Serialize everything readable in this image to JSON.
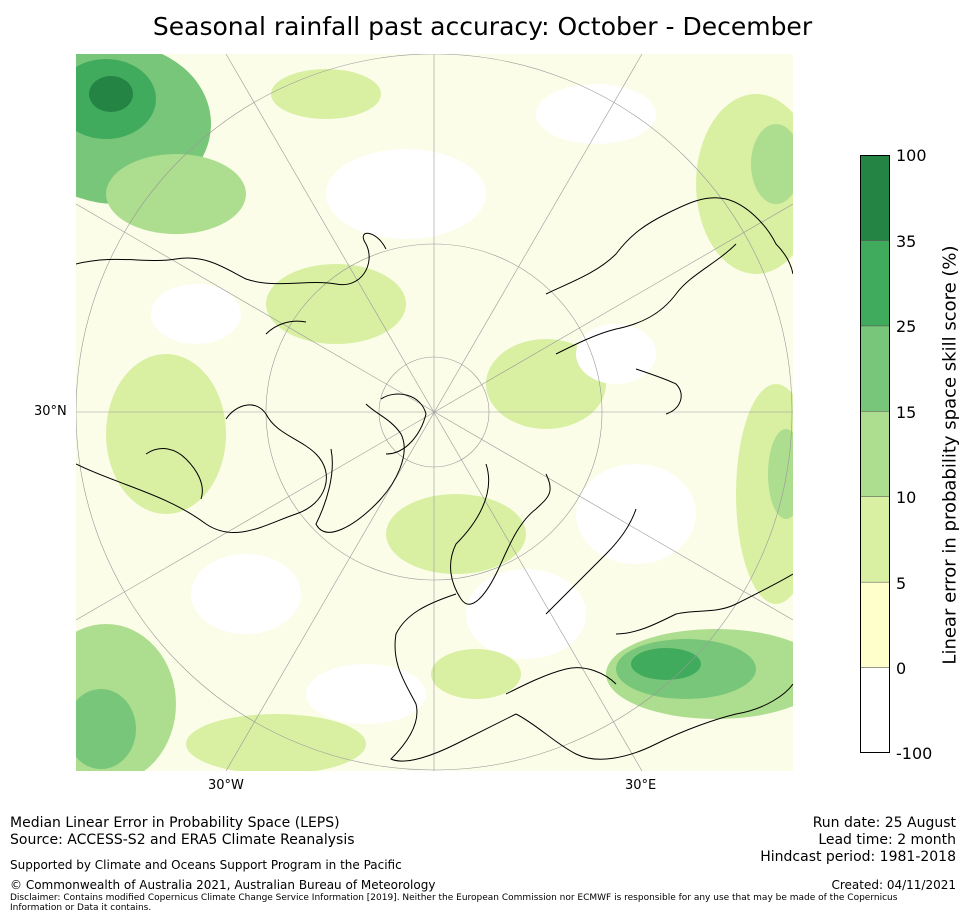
{
  "title": "Seasonal rainfall past accuracy: October - December",
  "map": {
    "projection": "north polar stereographic",
    "lat_label": "30°N",
    "lon_labels": [
      "30°W",
      "30°E"
    ]
  },
  "colorbar": {
    "label": "Linear error in probability space skill score (%)",
    "ticks": [
      "100",
      "35",
      "25",
      "15",
      "10",
      "5",
      "0",
      "-100"
    ],
    "bins": [
      {
        "from": -100,
        "to": 0,
        "color": "#ffffff"
      },
      {
        "from": 0,
        "to": 5,
        "color": "#ffffcc"
      },
      {
        "from": 5,
        "to": 10,
        "color": "#d9f0a3"
      },
      {
        "from": 10,
        "to": 15,
        "color": "#addd8e"
      },
      {
        "from": 15,
        "to": 25,
        "color": "#78c679"
      },
      {
        "from": 25,
        "to": 35,
        "color": "#41ab5d"
      },
      {
        "from": 35,
        "to": 100,
        "color": "#238443"
      }
    ]
  },
  "footer": {
    "metric": "Median Linear Error in Probability Space (LEPS)",
    "source": "Source: ACCESS-S2 and ERA5 Climate Reanalysis",
    "support": "Supported by Climate and Oceans Support Program in the Pacific",
    "copyright": "© Commonwealth of Australia 2021, Australian Bureau of Meteorology",
    "disclaimer_line1": "Disclaimer: Contains modified Copernicus Climate Change Service Information [2019]. Neither the European Commission nor ECMWF is responsible for any use that may be made of the Copernicus",
    "disclaimer_line2": "Information or Data it contains.",
    "run_date": "Run date: 25 August",
    "lead_time": "Lead time: 2 month",
    "hindcast": "Hindcast period: 1981-2018",
    "created": "Created: 04/11/2021"
  }
}
